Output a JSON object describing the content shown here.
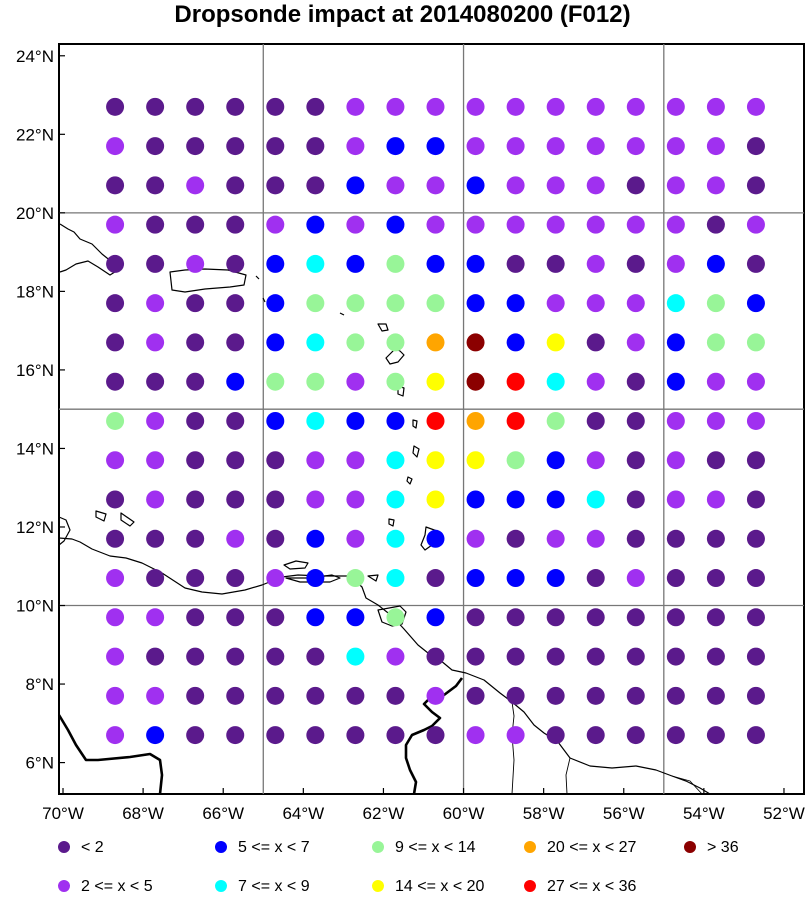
{
  "title": "Dropsonde impact at 2014080200 (F012)",
  "axes": {
    "lat_ticks": [
      "24°N",
      "22°N",
      "20°N",
      "18°N",
      "16°N",
      "14°N",
      "12°N",
      "10°N",
      "8°N",
      "6°N"
    ],
    "lon_ticks": [
      "70°W",
      "68°W",
      "66°W",
      "64°W",
      "62°W",
      "60°W",
      "58°W",
      "56°W",
      "54°W",
      "52°W"
    ]
  },
  "legend": [
    {
      "label": "<  2",
      "color": "#5b1a8c"
    },
    {
      "label": "2 <= x <  5",
      "color": "#a030f0"
    },
    {
      "label": "5 <= x <  7",
      "color": "#0000ff"
    },
    {
      "label": "7 <= x <  9",
      "color": "#00ffff"
    },
    {
      "label": "9 <= x < 14",
      "color": "#98f598"
    },
    {
      "label": "14 <= x < 20",
      "color": "#ffff00"
    },
    {
      "label": "20 <= x < 27",
      "color": "#ffa500"
    },
    {
      "label": "27 <= x < 36",
      "color": "#ff0000"
    },
    {
      "label": "> 36",
      "color": "#8b0000"
    }
  ],
  "chart_data": {
    "type": "scatter",
    "title": "Dropsonde impact at 2014080200 (F012)",
    "xlim": [
      -70.1,
      -51.5
    ],
    "ylim": [
      5.2,
      24.3
    ],
    "grid_lines_lon": [
      -65,
      -60,
      -55
    ],
    "grid_lines_lat": [
      20,
      15,
      10
    ],
    "lons": [
      -68.7,
      -67.7,
      -66.7,
      -65.7,
      -64.7,
      -63.7,
      -62.7,
      -61.7,
      -60.7,
      -59.7,
      -58.7,
      -57.7,
      -56.7,
      -55.7,
      -54.7,
      -53.7,
      -52.7
    ],
    "lats": [
      22.7,
      21.7,
      20.7,
      19.7,
      18.7,
      17.7,
      16.7,
      15.7,
      14.7,
      13.7,
      12.7,
      11.7,
      10.7,
      9.7,
      8.7,
      7.7,
      6.7
    ],
    "category_codes": "0 = <2, 1 = 2-5, 2 = 5-7, 3 = 7-9, 4 = 9-14, 5 = 14-20, 6 = 20-27, 7 = 27-36, 8 = >36",
    "grid": [
      [
        0,
        0,
        0,
        0,
        0,
        0,
        1,
        1,
        1,
        1,
        1,
        1,
        1,
        1,
        1,
        1,
        1
      ],
      [
        1,
        0,
        0,
        0,
        0,
        0,
        1,
        2,
        2,
        1,
        1,
        1,
        1,
        1,
        1,
        1,
        0
      ],
      [
        0,
        0,
        1,
        0,
        0,
        0,
        2,
        1,
        1,
        2,
        1,
        1,
        1,
        0,
        1,
        1,
        0
      ],
      [
        1,
        0,
        0,
        0,
        1,
        2,
        1,
        2,
        1,
        1,
        1,
        1,
        1,
        1,
        1,
        0,
        1
      ],
      [
        0,
        0,
        1,
        0,
        2,
        3,
        2,
        4,
        2,
        2,
        0,
        0,
        1,
        0,
        1,
        2,
        0
      ],
      [
        0,
        1,
        0,
        0,
        2,
        4,
        4,
        4,
        4,
        2,
        2,
        1,
        1,
        1,
        3,
        4,
        2
      ],
      [
        0,
        1,
        0,
        0,
        2,
        3,
        4,
        4,
        6,
        8,
        2,
        5,
        0,
        1,
        2,
        4,
        4
      ],
      [
        0,
        0,
        0,
        2,
        4,
        4,
        1,
        4,
        5,
        8,
        7,
        3,
        1,
        0,
        2,
        1,
        1
      ],
      [
        4,
        1,
        0,
        0,
        2,
        3,
        2,
        2,
        7,
        6,
        7,
        4,
        0,
        0,
        1,
        1,
        1
      ],
      [
        1,
        1,
        0,
        0,
        0,
        1,
        1,
        3,
        5,
        5,
        4,
        2,
        1,
        0,
        1,
        0,
        0
      ],
      [
        0,
        1,
        0,
        0,
        0,
        1,
        1,
        3,
        5,
        2,
        2,
        2,
        3,
        0,
        1,
        1,
        0
      ],
      [
        0,
        0,
        0,
        1,
        0,
        2,
        1,
        3,
        2,
        1,
        0,
        1,
        1,
        0,
        0,
        0,
        0
      ],
      [
        1,
        0,
        0,
        0,
        1,
        2,
        4,
        3,
        0,
        2,
        2,
        2,
        0,
        1,
        0,
        0,
        0
      ],
      [
        1,
        1,
        0,
        0,
        0,
        2,
        2,
        4,
        2,
        0,
        0,
        0,
        0,
        0,
        0,
        0,
        0
      ],
      [
        1,
        0,
        0,
        0,
        0,
        0,
        3,
        1,
        0,
        0,
        0,
        0,
        0,
        0,
        0,
        0,
        0
      ],
      [
        1,
        1,
        0,
        0,
        0,
        0,
        0,
        0,
        1,
        0,
        0,
        0,
        0,
        0,
        0,
        0,
        0
      ],
      [
        1,
        2,
        0,
        0,
        0,
        0,
        0,
        0,
        0,
        1,
        1,
        0,
        0,
        0,
        0,
        0,
        0
      ]
    ]
  }
}
